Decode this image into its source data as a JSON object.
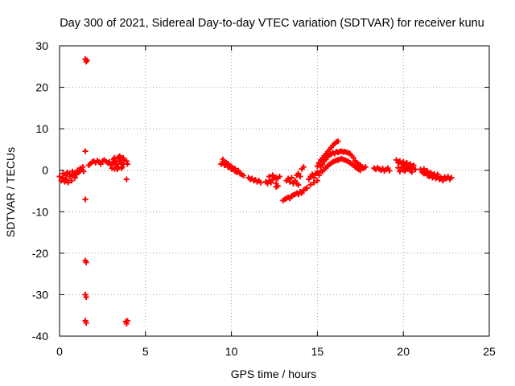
{
  "chart_data": {
    "type": "scatter",
    "title": "Day 300 of 2021, Sidereal Day-to-day VTEC variation (SDTVAR) for receiver kunu",
    "xlabel": "GPS time / hours",
    "ylabel": "SDTVAR / TECUs",
    "xlim": [
      0,
      25
    ],
    "ylim": [
      -40,
      30
    ],
    "xticks": [
      0,
      5,
      10,
      15,
      20,
      25
    ],
    "yticks": [
      -40,
      -30,
      -20,
      -10,
      0,
      10,
      20,
      30
    ],
    "grid": true,
    "marker": "+",
    "series": [
      {
        "name": "SDTVAR",
        "color": "#ff0000",
        "points": [
          [
            0.0,
            -1.5
          ],
          [
            0.1,
            -2.5
          ],
          [
            0.2,
            -1.8
          ],
          [
            0.3,
            -2.8
          ],
          [
            0.4,
            -2.2
          ],
          [
            0.5,
            -3.0
          ],
          [
            0.6,
            -1.5
          ],
          [
            0.7,
            -2.5
          ],
          [
            0.8,
            -1.2
          ],
          [
            0.9,
            -1.8
          ],
          [
            1.0,
            -1.0
          ],
          [
            1.1,
            -0.5
          ],
          [
            1.2,
            -0.2
          ],
          [
            1.3,
            0.2
          ],
          [
            1.4,
            -0.3
          ],
          [
            0.2,
            -0.8
          ],
          [
            0.35,
            -1.2
          ],
          [
            0.45,
            -0.5
          ],
          [
            0.6,
            -0.8
          ],
          [
            0.75,
            -0.3
          ],
          [
            0.9,
            -0.6
          ],
          [
            1.05,
            0.0
          ],
          [
            1.2,
            0.5
          ],
          [
            1.35,
            0.8
          ],
          [
            1.5,
            26.8
          ],
          [
            1.55,
            26.2
          ],
          [
            1.6,
            26.5
          ],
          [
            1.5,
            4.6
          ],
          [
            1.5,
            -7.0
          ],
          [
            1.5,
            -21.8
          ],
          [
            1.55,
            -22.2
          ],
          [
            1.5,
            -30.0
          ],
          [
            1.55,
            -30.6
          ],
          [
            1.5,
            -36.3
          ],
          [
            1.55,
            -36.8
          ],
          [
            1.7,
            1.2
          ],
          [
            1.8,
            1.6
          ],
          [
            1.9,
            2.0
          ],
          [
            2.0,
            2.2
          ],
          [
            2.1,
            1.8
          ],
          [
            2.2,
            2.3
          ],
          [
            2.3,
            2.0
          ],
          [
            2.4,
            1.5
          ],
          [
            2.5,
            2.2
          ],
          [
            2.6,
            2.5
          ],
          [
            2.7,
            2.1
          ],
          [
            2.8,
            1.8
          ],
          [
            2.9,
            2.0
          ],
          [
            3.0,
            1.2
          ],
          [
            3.05,
            0.5
          ],
          [
            3.1,
            1.8
          ],
          [
            3.15,
            2.6
          ],
          [
            3.2,
            3.0
          ],
          [
            3.25,
            2.2
          ],
          [
            3.3,
            1.0
          ],
          [
            3.35,
            0.2
          ],
          [
            3.4,
            2.8
          ],
          [
            3.45,
            3.2
          ],
          [
            3.5,
            3.4
          ],
          [
            3.55,
            2.9
          ],
          [
            3.6,
            1.8
          ],
          [
            3.65,
            0.8
          ],
          [
            3.7,
            1.5
          ],
          [
            3.75,
            2.5
          ],
          [
            3.2,
            0.3
          ],
          [
            3.3,
            1.5
          ],
          [
            3.4,
            0.8
          ],
          [
            3.5,
            2.0
          ],
          [
            3.6,
            0.5
          ],
          [
            3.7,
            3.0
          ],
          [
            3.9,
            2.2
          ],
          [
            3.95,
            1.5
          ],
          [
            3.9,
            -2.2
          ],
          [
            3.85,
            -36.5
          ],
          [
            3.9,
            -37.0
          ],
          [
            3.95,
            -36.3
          ],
          [
            9.4,
            1.5
          ],
          [
            9.5,
            2.0
          ],
          [
            9.6,
            1.2
          ],
          [
            9.7,
            1.8
          ],
          [
            9.8,
            0.8
          ],
          [
            9.9,
            1.0
          ],
          [
            10.0,
            0.2
          ],
          [
            10.1,
            0.5
          ],
          [
            10.2,
            -0.2
          ],
          [
            10.3,
            -0.5
          ],
          [
            10.4,
            -0.3
          ],
          [
            10.5,
            -0.8
          ],
          [
            10.6,
            -1.0
          ],
          [
            10.7,
            -1.3
          ],
          [
            9.5,
            2.6
          ],
          [
            9.6,
            2.0
          ],
          [
            9.8,
            1.6
          ],
          [
            10.0,
            0.9
          ],
          [
            10.2,
            0.4
          ],
          [
            10.4,
            -0.1
          ],
          [
            11.0,
            -1.8
          ],
          [
            11.1,
            -2.2
          ],
          [
            11.2,
            -2.0
          ],
          [
            11.3,
            -2.5
          ],
          [
            11.4,
            -2.3
          ],
          [
            11.5,
            -2.8
          ],
          [
            11.6,
            -2.5
          ],
          [
            11.7,
            -3.0
          ],
          [
            12.0,
            -2.8
          ],
          [
            12.1,
            -3.2
          ],
          [
            12.2,
            -2.5
          ],
          [
            12.3,
            -3.0
          ],
          [
            12.4,
            -2.2
          ],
          [
            12.5,
            -1.8
          ],
          [
            12.6,
            -3.2
          ],
          [
            12.7,
            -2.0
          ],
          [
            12.8,
            -1.5
          ],
          [
            12.2,
            -1.5
          ],
          [
            12.4,
            -1.2
          ],
          [
            12.6,
            -1.8
          ],
          [
            12.6,
            -4.0
          ],
          [
            12.7,
            -3.8
          ],
          [
            13.0,
            -7.3
          ],
          [
            13.1,
            -7.0
          ],
          [
            13.2,
            -6.8
          ],
          [
            13.3,
            -6.5
          ],
          [
            13.4,
            -6.8
          ],
          [
            13.5,
            -6.2
          ],
          [
            13.6,
            -6.0
          ],
          [
            13.7,
            -5.8
          ],
          [
            13.8,
            -5.5
          ],
          [
            13.9,
            -5.8
          ],
          [
            14.0,
            -5.2
          ],
          [
            14.1,
            -5.5
          ],
          [
            14.2,
            -4.8
          ],
          [
            14.3,
            -4.5
          ],
          [
            14.4,
            -4.3
          ],
          [
            13.2,
            -2.5
          ],
          [
            13.3,
            -2.0
          ],
          [
            13.4,
            -2.8
          ],
          [
            13.5,
            -1.8
          ],
          [
            13.6,
            -3.2
          ],
          [
            13.7,
            -2.5
          ],
          [
            13.8,
            -1.2
          ],
          [
            13.9,
            -0.8
          ],
          [
            14.0,
            -1.5
          ],
          [
            13.8,
            -3.2
          ],
          [
            13.9,
            -3.5
          ],
          [
            14.1,
            0.3
          ],
          [
            14.2,
            0.8
          ],
          [
            14.5,
            -2.2
          ],
          [
            14.6,
            -1.5
          ],
          [
            14.7,
            -1.0
          ],
          [
            14.8,
            -1.8
          ],
          [
            14.9,
            -0.8
          ],
          [
            15.0,
            -0.5
          ],
          [
            15.1,
            -1.2
          ],
          [
            15.2,
            -0.2
          ],
          [
            14.6,
            -3.5
          ],
          [
            14.8,
            -3.0
          ],
          [
            15.0,
            -2.5
          ],
          [
            15.0,
            1.0
          ],
          [
            15.1,
            1.8
          ],
          [
            15.2,
            2.5
          ],
          [
            15.3,
            3.0
          ],
          [
            15.4,
            3.5
          ],
          [
            15.5,
            4.0
          ],
          [
            15.6,
            4.5
          ],
          [
            15.7,
            5.0
          ],
          [
            15.8,
            5.5
          ],
          [
            15.9,
            6.0
          ],
          [
            16.0,
            6.4
          ],
          [
            16.1,
            6.8
          ],
          [
            16.2,
            7.0
          ],
          [
            15.2,
            0.8
          ],
          [
            15.3,
            1.4
          ],
          [
            15.4,
            2.2
          ],
          [
            15.5,
            2.6
          ],
          [
            15.6,
            3.2
          ],
          [
            15.7,
            3.6
          ],
          [
            15.8,
            3.9
          ],
          [
            15.9,
            4.2
          ],
          [
            16.0,
            4.0
          ],
          [
            16.1,
            4.5
          ],
          [
            16.2,
            4.3
          ],
          [
            16.3,
            4.5
          ],
          [
            16.4,
            4.6
          ],
          [
            16.5,
            4.4
          ],
          [
            16.6,
            4.5
          ],
          [
            16.7,
            4.3
          ],
          [
            16.8,
            4.2
          ],
          [
            16.9,
            4.0
          ],
          [
            17.0,
            3.5
          ],
          [
            17.1,
            3.0
          ],
          [
            17.2,
            2.2
          ],
          [
            17.3,
            1.8
          ],
          [
            17.4,
            1.5
          ],
          [
            17.5,
            1.2
          ],
          [
            17.6,
            0.8
          ],
          [
            17.7,
            0.5
          ],
          [
            17.8,
            0.8
          ],
          [
            15.3,
            -0.3
          ],
          [
            15.4,
            0.2
          ],
          [
            15.5,
            0.6
          ],
          [
            15.6,
            1.0
          ],
          [
            15.7,
            1.4
          ],
          [
            15.8,
            1.7
          ],
          [
            15.9,
            2.0
          ],
          [
            16.0,
            2.2
          ],
          [
            16.1,
            2.4
          ],
          [
            16.2,
            2.5
          ],
          [
            16.3,
            2.6
          ],
          [
            16.4,
            2.8
          ],
          [
            16.5,
            2.6
          ],
          [
            16.6,
            2.5
          ],
          [
            16.7,
            2.3
          ],
          [
            16.8,
            2.1
          ],
          [
            16.9,
            1.8
          ],
          [
            17.0,
            1.5
          ],
          [
            17.1,
            1.2
          ],
          [
            17.2,
            0.8
          ],
          [
            17.3,
            0.5
          ],
          [
            17.4,
            0.2
          ],
          [
            17.5,
            0.0
          ],
          [
            18.3,
            0.5
          ],
          [
            18.4,
            0.2
          ],
          [
            18.5,
            0.6
          ],
          [
            18.6,
            0.3
          ],
          [
            18.7,
            0.0
          ],
          [
            18.8,
            0.4
          ],
          [
            18.9,
            -0.2
          ],
          [
            19.0,
            0.2
          ],
          [
            19.1,
            0.5
          ],
          [
            19.2,
            -0.1
          ],
          [
            19.6,
            2.5
          ],
          [
            19.7,
            1.8
          ],
          [
            19.8,
            2.2
          ],
          [
            19.9,
            1.5
          ],
          [
            20.0,
            2.0
          ],
          [
            20.1,
            1.2
          ],
          [
            20.2,
            1.8
          ],
          [
            20.3,
            0.8
          ],
          [
            20.4,
            1.5
          ],
          [
            20.5,
            0.5
          ],
          [
            20.6,
            1.2
          ],
          [
            20.7,
            0.2
          ],
          [
            19.7,
            0.6
          ],
          [
            19.9,
            0.8
          ],
          [
            20.1,
            -0.2
          ],
          [
            20.3,
            0.3
          ],
          [
            20.5,
            -0.4
          ],
          [
            19.8,
            -0.3
          ],
          [
            20.0,
            0.1
          ],
          [
            20.2,
            0.4
          ],
          [
            20.4,
            -0.1
          ],
          [
            21.0,
            0.2
          ],
          [
            21.1,
            -0.5
          ],
          [
            21.2,
            -0.8
          ],
          [
            21.3,
            -0.3
          ],
          [
            21.4,
            -1.2
          ],
          [
            21.5,
            -1.5
          ],
          [
            21.6,
            -1.0
          ],
          [
            21.7,
            -1.8
          ],
          [
            21.8,
            -1.4
          ],
          [
            21.9,
            -2.0
          ],
          [
            22.0,
            -1.5
          ],
          [
            22.1,
            -2.2
          ],
          [
            22.2,
            -1.8
          ],
          [
            22.3,
            -2.5
          ],
          [
            22.4,
            -1.6
          ],
          [
            22.5,
            -2.0
          ],
          [
            22.6,
            -1.5
          ],
          [
            22.7,
            -2.2
          ],
          [
            22.8,
            -1.8
          ],
          [
            21.2,
            0.3
          ],
          [
            21.4,
            -0.2
          ],
          [
            21.6,
            -0.6
          ],
          [
            21.8,
            -0.9
          ],
          [
            22.0,
            -1.0
          ]
        ]
      }
    ]
  }
}
